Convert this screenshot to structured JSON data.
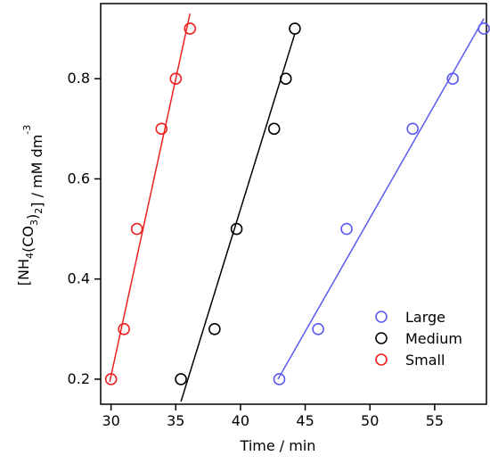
{
  "chart_data": {
    "type": "scatter",
    "xlabel": "Time / min",
    "ylabel": {
      "parts": [
        {
          "t": "[NH",
          "s": "n"
        },
        {
          "t": "4",
          "s": "sub"
        },
        {
          "t": "(CO",
          "s": "n"
        },
        {
          "t": "3",
          "s": "sub"
        },
        {
          "t": ")",
          "s": "n"
        },
        {
          "t": "2",
          "s": "sub"
        },
        {
          "t": "] / mM dm",
          "s": "n"
        },
        {
          "t": "-3",
          "s": "sup"
        }
      ]
    },
    "xlim": [
      29.2,
      59.0
    ],
    "ylim": [
      0.15,
      0.95
    ],
    "xticks": [
      30,
      35,
      40,
      45,
      50,
      55
    ],
    "yticks": [
      0.2,
      0.4,
      0.6,
      0.8
    ],
    "ytick_labels": [
      "0.2",
      "0.4",
      "0.6",
      "0.8"
    ],
    "grid": false,
    "legend_position": "bottom-right",
    "series": [
      {
        "name": "Large",
        "color": "#5a5af0",
        "x": [
          43.0,
          46.0,
          48.2,
          53.3,
          56.4,
          58.8
        ],
        "y": [
          0.2,
          0.3,
          0.5,
          0.7,
          0.8,
          0.9
        ],
        "fit": {
          "x": [
            42.9,
            58.8
          ],
          "y": [
            0.2,
            0.92
          ]
        }
      },
      {
        "name": "Medium",
        "color": "#000000",
        "x": [
          35.4,
          38.0,
          39.7,
          42.6,
          43.5,
          44.2
        ],
        "y": [
          0.2,
          0.3,
          0.5,
          0.7,
          0.8,
          0.9
        ],
        "fit": {
          "x": [
            35.4,
            44.2
          ],
          "y": [
            0.155,
            0.89
          ]
        }
      },
      {
        "name": "Small",
        "color": "#ee2020",
        "x": [
          30.0,
          31.0,
          32.0,
          33.9,
          35.0,
          36.1
        ],
        "y": [
          0.2,
          0.3,
          0.5,
          0.7,
          0.8,
          0.9
        ],
        "fit": {
          "x": [
            29.9,
            36.1
          ],
          "y": [
            0.195,
            0.93
          ]
        }
      }
    ]
  }
}
